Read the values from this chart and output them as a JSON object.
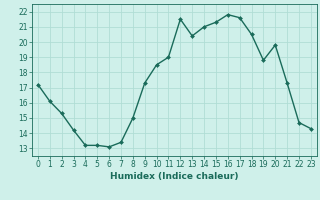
{
  "x": [
    0,
    1,
    2,
    3,
    4,
    5,
    6,
    7,
    8,
    9,
    10,
    11,
    12,
    13,
    14,
    15,
    16,
    17,
    18,
    19,
    20,
    21,
    22,
    23
  ],
  "y": [
    17.2,
    16.1,
    15.3,
    14.2,
    13.2,
    13.2,
    13.1,
    13.4,
    15.0,
    17.3,
    18.5,
    19.0,
    21.5,
    20.4,
    21.0,
    21.3,
    21.8,
    21.6,
    20.5,
    18.8,
    19.8,
    17.3,
    14.7,
    14.3
  ],
  "line_color": "#1a6b5a",
  "marker": "D",
  "marker_size": 2.0,
  "bg_color": "#cff0ea",
  "grid_color": "#b0ddd5",
  "xlabel": "Humidex (Indice chaleur)",
  "xlim": [
    -0.5,
    23.5
  ],
  "ylim": [
    12.5,
    22.5
  ],
  "yticks": [
    13,
    14,
    15,
    16,
    17,
    18,
    19,
    20,
    21,
    22
  ],
  "xticks": [
    0,
    1,
    2,
    3,
    4,
    5,
    6,
    7,
    8,
    9,
    10,
    11,
    12,
    13,
    14,
    15,
    16,
    17,
    18,
    19,
    20,
    21,
    22,
    23
  ],
  "tick_label_fontsize": 5.5,
  "xlabel_fontsize": 6.5,
  "line_width": 1.0,
  "marker_color": "#1a6b5a"
}
